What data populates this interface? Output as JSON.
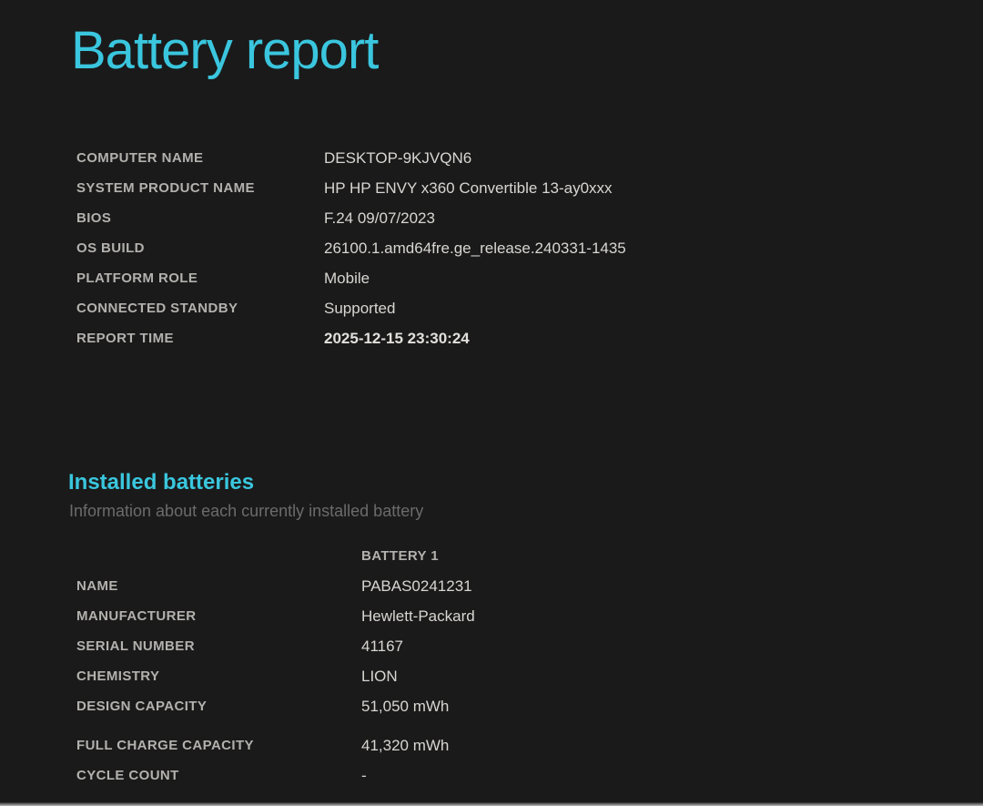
{
  "page": {
    "title": "Battery report",
    "background_color": "#1a1a1a",
    "accent_color": "#3ac6de",
    "label_color": "#b3b1ae",
    "value_color": "#d8d6d2"
  },
  "system_info": {
    "rows": [
      {
        "label": "COMPUTER NAME",
        "value": "DESKTOP-9KJVQN6"
      },
      {
        "label": "SYSTEM PRODUCT NAME",
        "value": "HP HP ENVY x360 Convertible 13-ay0xxx"
      },
      {
        "label": "BIOS",
        "value": "F.24 09/07/2023"
      },
      {
        "label": "OS BUILD",
        "value": "26100.1.amd64fre.ge_release.240331-1435"
      },
      {
        "label": "PLATFORM ROLE",
        "value": "Mobile"
      },
      {
        "label": "CONNECTED STANDBY",
        "value": "Supported"
      },
      {
        "label": "REPORT TIME",
        "value": "2025-12-15  23:30:24"
      }
    ]
  },
  "installed_batteries": {
    "heading": "Installed batteries",
    "subtitle": "Information about each currently installed battery",
    "column_header": "BATTERY 1",
    "rows": [
      {
        "label": "NAME",
        "value": "PABAS0241231"
      },
      {
        "label": "MANUFACTURER",
        "value": "Hewlett-Packard"
      },
      {
        "label": "SERIAL NUMBER",
        "value": "41167"
      },
      {
        "label": "CHEMISTRY",
        "value": "LION"
      },
      {
        "label": "DESIGN CAPACITY",
        "value": "51,050 mWh"
      },
      {
        "label": "FULL CHARGE CAPACITY",
        "value": "41,320 mWh"
      },
      {
        "label": "CYCLE COUNT",
        "value": "-"
      }
    ]
  }
}
